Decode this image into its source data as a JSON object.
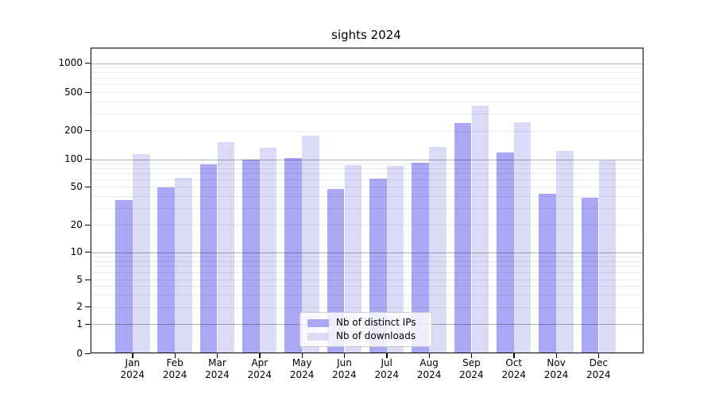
{
  "title": "sights 2024",
  "legend": {
    "items": [
      {
        "label": "Nb of distinct IPs",
        "color": "#a8a8f4"
      },
      {
        "label": "Nb of downloads",
        "color": "#dbdbf8"
      }
    ]
  },
  "chart_data": {
    "type": "bar",
    "title": "sights 2024",
    "xlabel": "",
    "ylabel": "",
    "categories": [
      "Jan 2024",
      "Feb 2024",
      "Mar 2024",
      "Apr 2024",
      "May 2024",
      "Jun 2024",
      "Jul 2024",
      "Aug 2024",
      "Sep 2024",
      "Oct 2024",
      "Nov 2024",
      "Dec 2024"
    ],
    "x_tick_months": [
      "Jan",
      "Feb",
      "Mar",
      "Apr",
      "May",
      "Jun",
      "Jul",
      "Aug",
      "Sep",
      "Oct",
      "Nov",
      "Dec"
    ],
    "x_tick_year": "2024",
    "series": [
      {
        "name": "Nb of distinct IPs",
        "color": "#a8a8f4",
        "values": [
          36,
          49,
          88,
          100,
          102,
          47,
          61,
          91,
          240,
          118,
          42,
          38
        ]
      },
      {
        "name": "Nb of downloads",
        "color": "#dbdbf8",
        "values": [
          113,
          62,
          150,
          131,
          175,
          86,
          85,
          134,
          365,
          245,
          122,
          97
        ]
      }
    ],
    "yscale": "symlog",
    "y_ticks": [
      0,
      1,
      2,
      5,
      10,
      20,
      50,
      100,
      200,
      500,
      1000
    ],
    "ylim": [
      0,
      1400
    ],
    "grid": true,
    "grid_minor": true,
    "legend_position": "lower center, inside plot"
  }
}
